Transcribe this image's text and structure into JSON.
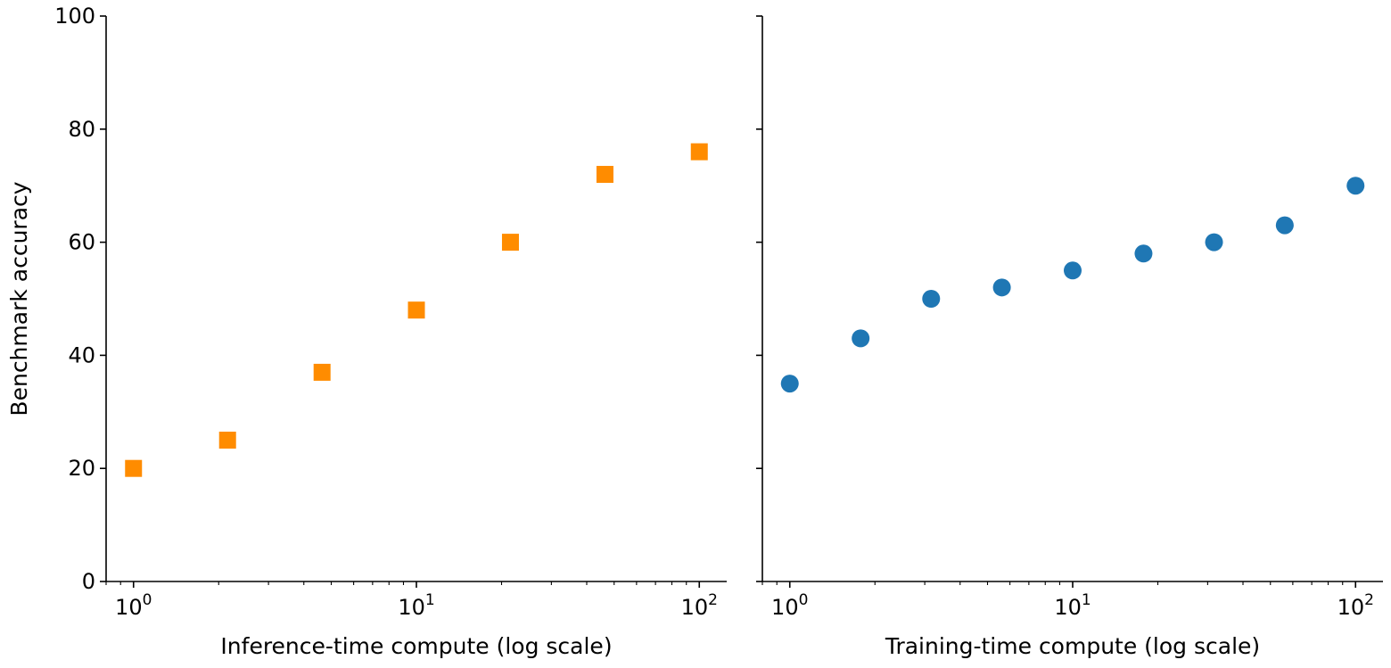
{
  "chart_data": [
    {
      "type": "scatter",
      "xscale": "log",
      "xlabel": "Inference-time compute (log scale)",
      "ylabel": "Benchmark accuracy",
      "xlim": [
        0.8,
        125
      ],
      "ylim": [
        0,
        100
      ],
      "x_major_ticks": [
        1,
        10,
        100
      ],
      "y_ticks": [
        0,
        20,
        40,
        60,
        80,
        100
      ],
      "y_tick_labels": [
        "0",
        "20",
        "40",
        "60",
        "80",
        "100"
      ],
      "grid": false,
      "marker": "square",
      "color": "#ff8c00",
      "x": [
        1,
        2.15,
        4.64,
        10,
        21.5,
        46.4,
        100
      ],
      "y": [
        20,
        25,
        37,
        48,
        60,
        72,
        76
      ]
    },
    {
      "type": "scatter",
      "xscale": "log",
      "xlabel": "Training-time compute (log scale)",
      "ylabel": "",
      "xlim": [
        0.8,
        125
      ],
      "ylim": [
        0,
        100
      ],
      "x_major_ticks": [
        1,
        10,
        100
      ],
      "y_ticks": [
        0,
        20,
        40,
        60,
        80,
        100
      ],
      "y_tick_labels": [],
      "grid": false,
      "marker": "circle",
      "color": "#1f77b4",
      "x": [
        1,
        1.78,
        3.16,
        5.62,
        10,
        17.8,
        31.6,
        56.2,
        100
      ],
      "y": [
        35,
        43,
        50,
        52,
        55,
        58,
        60,
        63,
        70
      ]
    }
  ]
}
